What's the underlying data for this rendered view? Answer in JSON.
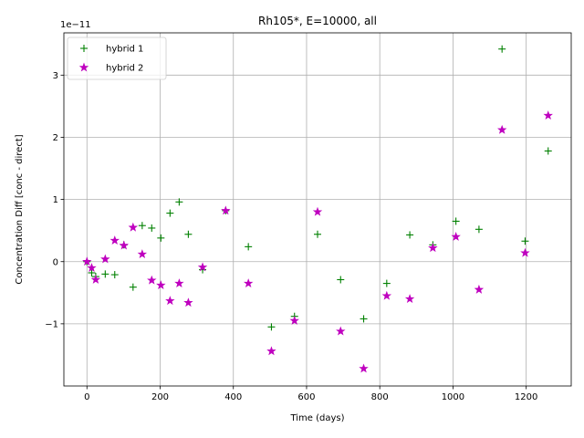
{
  "chart_data": {
    "type": "scatter",
    "title": "Rh105*, E=10000, all",
    "xlabel": "Time (days)",
    "ylabel": "Concentration Diff [conc - direct]",
    "offset_label": "1e−11",
    "xlim": [
      -63,
      1323
    ],
    "ylim": [
      -2.0,
      3.68
    ],
    "x_ticks": [
      0,
      200,
      400,
      600,
      800,
      1000,
      1200
    ],
    "y_ticks": [
      -1,
      0,
      1,
      2,
      3
    ],
    "grid": true,
    "legend": "upper-left",
    "series": [
      {
        "name": "hybrid 1",
        "color": "#008000",
        "marker": "plus",
        "points": [
          [
            0,
            0.0
          ],
          [
            13,
            -0.18
          ],
          [
            24,
            -0.24
          ],
          [
            50,
            -0.2
          ],
          [
            76,
            -0.21
          ],
          [
            101,
            0.27
          ],
          [
            126,
            -0.41
          ],
          [
            151,
            0.58
          ],
          [
            177,
            0.54
          ],
          [
            202,
            0.38
          ],
          [
            227,
            0.78
          ],
          [
            252,
            0.96
          ],
          [
            277,
            0.44
          ],
          [
            316,
            -0.13
          ],
          [
            379,
            0.82
          ],
          [
            441,
            0.24
          ],
          [
            504,
            -1.05
          ],
          [
            567,
            -0.88
          ],
          [
            630,
            0.44
          ],
          [
            693,
            -0.29
          ],
          [
            756,
            -0.92
          ],
          [
            819,
            -0.35
          ],
          [
            882,
            0.43
          ],
          [
            945,
            0.27
          ],
          [
            1008,
            0.65
          ],
          [
            1071,
            0.52
          ],
          [
            1134,
            3.42
          ],
          [
            1197,
            0.33
          ],
          [
            1260,
            1.78
          ]
        ]
      },
      {
        "name": "hybrid 2",
        "color": "#bf00bf",
        "marker": "star",
        "points": [
          [
            0,
            0.0
          ],
          [
            13,
            -0.1
          ],
          [
            24,
            -0.29
          ],
          [
            50,
            0.04
          ],
          [
            76,
            0.34
          ],
          [
            101,
            0.26
          ],
          [
            126,
            0.55
          ],
          [
            151,
            0.12
          ],
          [
            177,
            -0.3
          ],
          [
            202,
            -0.38
          ],
          [
            227,
            -0.63
          ],
          [
            252,
            -0.35
          ],
          [
            277,
            -0.66
          ],
          [
            316,
            -0.09
          ],
          [
            379,
            0.82
          ],
          [
            441,
            -0.35
          ],
          [
            504,
            -1.44
          ],
          [
            567,
            -0.95
          ],
          [
            630,
            0.8
          ],
          [
            693,
            -1.12
          ],
          [
            756,
            -1.72
          ],
          [
            819,
            -0.55
          ],
          [
            882,
            -0.6
          ],
          [
            945,
            0.22
          ],
          [
            1008,
            0.4
          ],
          [
            1071,
            -0.45
          ],
          [
            1134,
            2.12
          ],
          [
            1197,
            0.14
          ],
          [
            1260,
            2.35
          ]
        ]
      }
    ]
  }
}
